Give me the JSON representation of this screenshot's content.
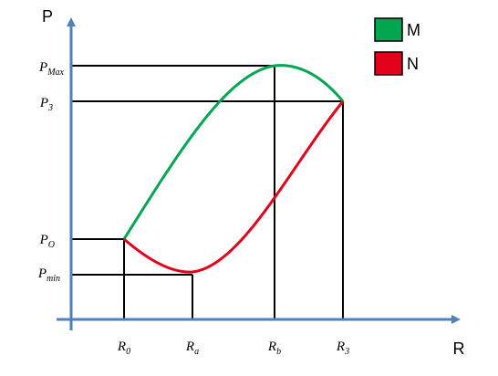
{
  "axes": {
    "y_label": "P",
    "x_label": "R"
  },
  "y_labels": [
    {
      "base": "P",
      "sub": "Max"
    },
    {
      "base": "P",
      "sub": "3"
    },
    {
      "base": "P",
      "sub": "O"
    },
    {
      "base": "P",
      "sub": "min"
    }
  ],
  "x_labels": [
    {
      "base": "R",
      "sub": "0"
    },
    {
      "base": "R",
      "sub": "a"
    },
    {
      "base": "R",
      "sub": "b"
    },
    {
      "base": "R",
      "sub": "3"
    }
  ],
  "legend": [
    {
      "label": "M",
      "color": "#00a650"
    },
    {
      "label": "N",
      "color": "#e2001a"
    }
  ]
}
